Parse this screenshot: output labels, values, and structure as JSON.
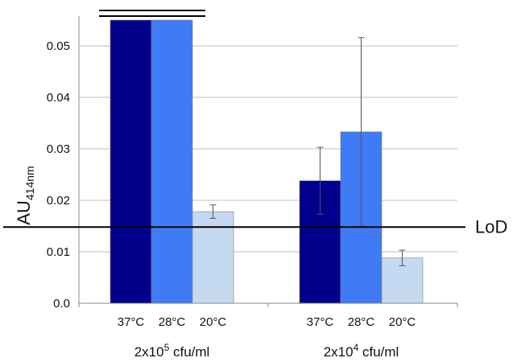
{
  "chart_data": {
    "type": "bar",
    "ylabel": "AU",
    "ylabel_subscript": "414nm",
    "ylim": [
      0,
      0.055
    ],
    "yticks": [
      "0.0",
      "0.01",
      "0.02",
      "0.03",
      "0.04",
      "0.05"
    ],
    "grid": true,
    "groups": [
      {
        "label_prefix": "2x10",
        "label_exponent": "5",
        "label_suffix": " cfu/ml",
        "bars": [
          {
            "category": "37°C",
            "value": 0.055,
            "error": null,
            "color": "#00008b",
            "truncated": true
          },
          {
            "category": "28°C",
            "value": 0.055,
            "error": null,
            "color": "#3f7bf4",
            "truncated": true
          },
          {
            "category": "20°C",
            "value": 0.0178,
            "error": 0.0013,
            "color": "#c5d9f1",
            "truncated": false
          }
        ]
      },
      {
        "label_prefix": "2x10",
        "label_exponent": "4",
        "label_suffix": " cfu/ml",
        "bars": [
          {
            "category": "37°C",
            "value": 0.0238,
            "error": 0.0065,
            "color": "#00008b",
            "truncated": false
          },
          {
            "category": "28°C",
            "value": 0.0333,
            "error": 0.0183,
            "color": "#3f7bf4",
            "truncated": false
          },
          {
            "category": "20°C",
            "value": 0.0088,
            "error": 0.0015,
            "color": "#c5d9f1",
            "truncated": false
          }
        ]
      }
    ],
    "reference_line": {
      "label": "LoD",
      "value": 0.0148
    }
  }
}
